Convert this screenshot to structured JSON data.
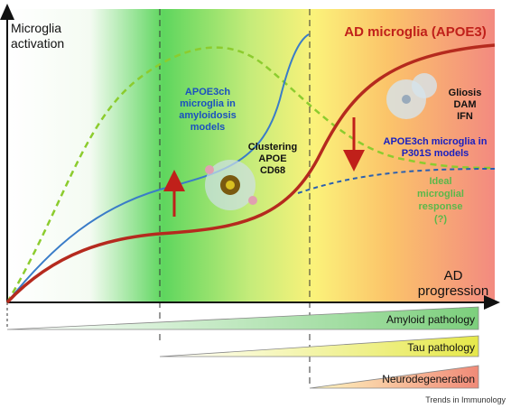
{
  "axes": {
    "y_label": [
      "Microglia",
      "activation"
    ],
    "x_label": [
      "AD",
      "progression"
    ]
  },
  "curves": {
    "ad_microglia": "AD microglia (APOE3)",
    "amyloidosis": [
      "APOE3ch",
      "microglia in",
      "amyloidosis",
      "models"
    ],
    "p301s": [
      "APOE3ch microglia in",
      "P301S models"
    ],
    "ideal": [
      "Ideal",
      "microglial",
      "response",
      "(?)"
    ]
  },
  "annotations": {
    "clustering": [
      "Clustering",
      "APOE",
      "CD68"
    ],
    "gliosis": [
      "Gliosis",
      "DAM",
      "IFN"
    ]
  },
  "pathologies": [
    "Amyloid pathology",
    "Tau pathology",
    "Neurodegeneration"
  ],
  "footer": "Trends in Immunology"
}
